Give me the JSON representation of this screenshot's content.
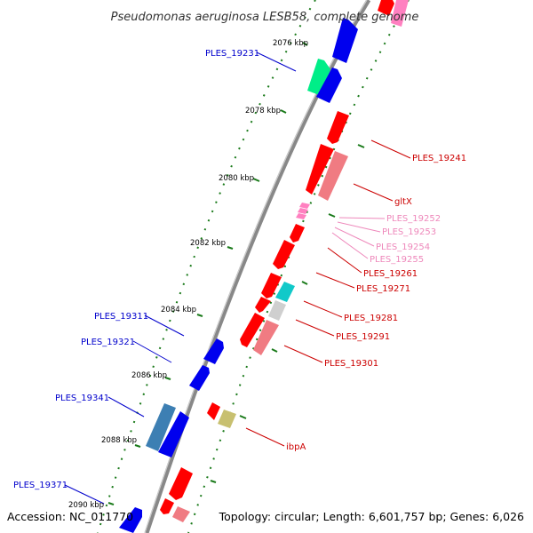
{
  "title": "Pseudomonas aeruginosa LESB58, complete genome",
  "footer": {
    "accession": "Accession: NC_011770",
    "topology": "Topology: circular; Length: 6,601,757 bp; Genes: 6,026"
  },
  "colors": {
    "forward_gene": "#0000ee",
    "reverse_gene": "#ff0000",
    "light_reverse": "#f07b82",
    "pale_reverse": "#ff80c0",
    "forward_label": "#0000cc",
    "reverse_label": "#cc0000",
    "pale_label": "#ee88bb",
    "tick": "#1a7a1a",
    "backbone": "#888888"
  },
  "scale_labels": [
    "2076 kbp",
    "2078 kbp",
    "2080 kbp",
    "2082 kbp",
    "2084 kbp",
    "2086 kbp",
    "2088 kbp",
    "2090 kbp"
  ],
  "labels_forward": [
    "PLES_19231",
    "PLES_19311",
    "PLES_19321",
    "PLES_19341",
    "PLES_19371"
  ],
  "labels_reverse": [
    "PLES_19241",
    "gltX",
    "PLES_19261",
    "PLES_19271",
    "PLES_19281",
    "PLES_19291",
    "PLES_19301",
    "ibpA"
  ],
  "labels_pale": [
    "PLES_19252",
    "PLES_19253",
    "PLES_19254",
    "PLES_19255"
  ]
}
